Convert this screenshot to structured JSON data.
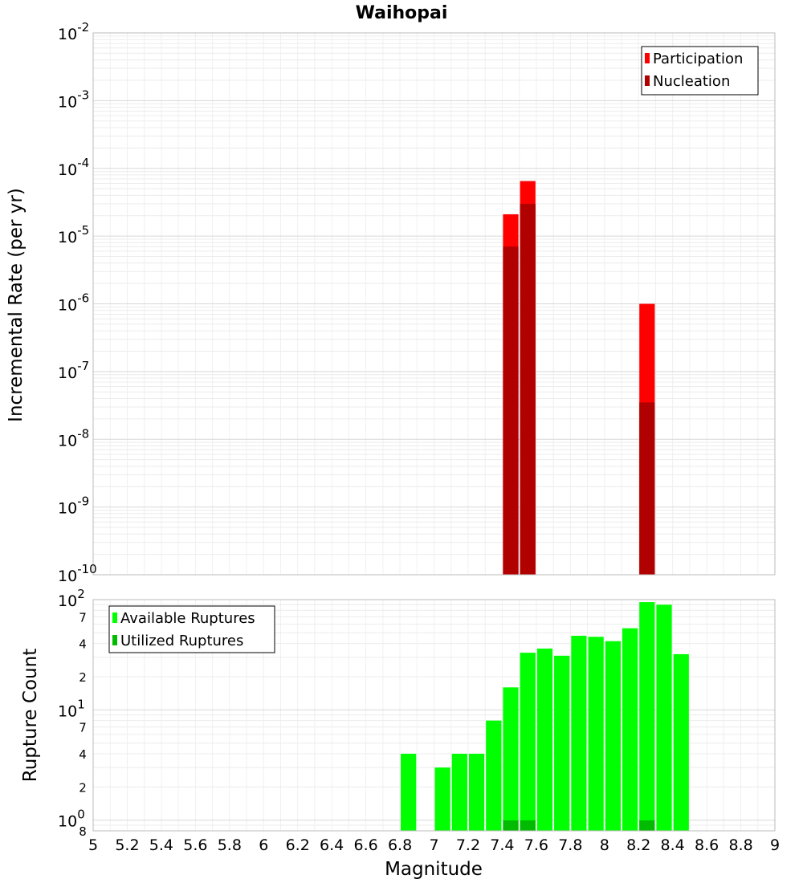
{
  "chart_data": [
    {
      "type": "bar",
      "title": "Waihopai",
      "ylabel": "Incremental Rate (per yr)",
      "xlabel": "",
      "y_scale": "log",
      "ylim": [
        1e-10,
        0.01
      ],
      "xlim": [
        5,
        9
      ],
      "y_tick_labels": [
        {
          "base": "10",
          "exp": "-10",
          "value": 1e-10
        },
        {
          "base": "10",
          "exp": "-9",
          "value": 1e-09
        },
        {
          "base": "10",
          "exp": "-8",
          "value": 1e-08
        },
        {
          "base": "10",
          "exp": "-7",
          "value": 1e-07
        },
        {
          "base": "10",
          "exp": "-6",
          "value": 1e-06
        },
        {
          "base": "10",
          "exp": "-5",
          "value": 1e-05
        },
        {
          "base": "10",
          "exp": "-4",
          "value": 0.0001
        },
        {
          "base": "10",
          "exp": "-3",
          "value": 0.001
        },
        {
          "base": "10",
          "exp": "-2",
          "value": 0.01
        }
      ],
      "grid": true,
      "legend_position": "top-right",
      "series": [
        {
          "name": "Participation",
          "color": "#ff0000",
          "x": [
            7.45,
            7.55,
            8.25
          ],
          "values": [
            2.1e-05,
            6.5e-05,
            1e-06
          ]
        },
        {
          "name": "Nucleation",
          "color": "#b00000",
          "x": [
            7.45,
            7.55,
            8.25
          ],
          "values": [
            7e-06,
            3e-05,
            3.5e-08
          ]
        }
      ]
    },
    {
      "type": "bar",
      "title": "",
      "ylabel": "Rupture Count",
      "xlabel": "Magnitude",
      "y_scale": "log",
      "ylim": [
        0.8,
        100
      ],
      "xlim": [
        5,
        9
      ],
      "x_tick_labels": [
        "5",
        "5.2",
        "5.4",
        "5.6",
        "5.8",
        "6",
        "6.2",
        "6.4",
        "6.6",
        "6.8",
        "7",
        "7.2",
        "7.4",
        "7.6",
        "7.8",
        "8",
        "8.2",
        "8.4",
        "8.6",
        "8.8",
        "9"
      ],
      "y_tick_labels": [
        {
          "base": "10",
          "exp": "0",
          "value": 1
        },
        {
          "base": "10",
          "exp": "1",
          "value": 10
        },
        {
          "base": "10",
          "exp": "2",
          "value": 100
        }
      ],
      "y_minor_tick_labels": [
        {
          "label": "8",
          "value": 0.8
        },
        {
          "label": "2",
          "value": 2
        },
        {
          "label": "4",
          "value": 4
        },
        {
          "label": "7",
          "value": 7
        },
        {
          "label": "2",
          "value": 20
        },
        {
          "label": "4",
          "value": 40
        },
        {
          "label": "7",
          "value": 70
        }
      ],
      "grid": true,
      "legend_position": "top-left",
      "series": [
        {
          "name": "Available Ruptures",
          "color": "#00ff00",
          "x": [
            6.85,
            7.05,
            7.15,
            7.25,
            7.35,
            7.45,
            7.55,
            7.65,
            7.75,
            7.85,
            7.95,
            8.05,
            8.15,
            8.25,
            8.35,
            8.45
          ],
          "values": [
            4,
            3,
            4,
            4,
            8,
            16,
            33,
            36,
            31,
            47,
            46,
            42,
            55,
            95,
            90,
            32
          ]
        },
        {
          "name": "Utilized Ruptures",
          "color": "#00bb00",
          "x": [
            7.45,
            7.55,
            8.25
          ],
          "values": [
            1,
            1,
            1
          ]
        }
      ]
    }
  ]
}
